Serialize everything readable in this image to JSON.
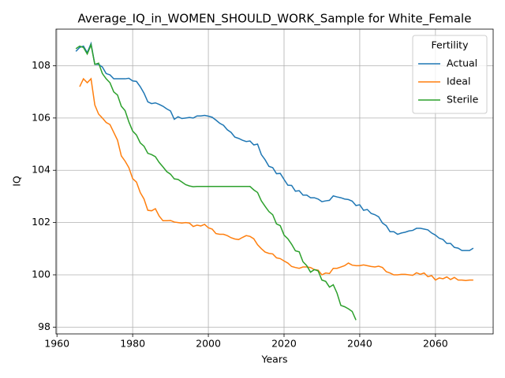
{
  "chart_data": {
    "type": "line",
    "title": "Average_IQ_in_WOMEN_SHOULD_WORK_Sample for White_Female",
    "xlabel": "Years",
    "ylabel": "IQ",
    "legend_title": "Fertility",
    "legend_loc": "upper right",
    "grid": true,
    "xlim": [
      1959.75,
      2075.25
    ],
    "ylim": [
      97.74,
      109.4
    ],
    "xticks": [
      1960,
      1980,
      2000,
      2020,
      2040,
      2060
    ],
    "yticks": [
      98,
      100,
      102,
      104,
      106,
      108
    ],
    "x": [
      1965,
      1966,
      1967,
      1968,
      1969,
      1970,
      1971,
      1972,
      1973,
      1974,
      1975,
      1976,
      1977,
      1978,
      1979,
      1980,
      1981,
      1982,
      1983,
      1984,
      1985,
      1986,
      1987,
      1988,
      1989,
      1990,
      1991,
      1992,
      1993,
      1994,
      1995,
      1996,
      1997,
      1998,
      1999,
      2000,
      2001,
      2002,
      2003,
      2004,
      2005,
      2006,
      2007,
      2008,
      2009,
      2010,
      2011,
      2012,
      2013,
      2014,
      2015,
      2016,
      2017,
      2018,
      2019,
      2020,
      2021,
      2022,
      2023,
      2024,
      2025,
      2026,
      2027,
      2028,
      2029,
      2030,
      2031,
      2032,
      2033,
      2034,
      2035,
      2036,
      2037,
      2038,
      2039,
      2040,
      2041,
      2042,
      2043,
      2044,
      2045,
      2046,
      2047,
      2048,
      2049,
      2050,
      2051,
      2052,
      2053,
      2054,
      2055,
      2056,
      2057,
      2058,
      2059,
      2060,
      2061,
      2062,
      2063,
      2064,
      2065,
      2066,
      2067,
      2068,
      2069,
      2070
    ],
    "series": [
      {
        "name": "Actual",
        "color": "#1f77b4",
        "values": [
          108.55,
          108.7,
          108.75,
          108.5,
          108.85,
          108.05,
          108.05,
          107.95,
          107.7,
          107.65,
          107.5,
          107.5,
          107.5,
          107.5,
          107.52,
          107.42,
          107.4,
          107.2,
          106.95,
          106.62,
          106.55,
          106.58,
          106.52,
          106.45,
          106.35,
          106.27,
          105.95,
          106.05,
          105.98,
          106.0,
          106.02,
          106.0,
          106.08,
          106.08,
          106.1,
          106.07,
          106.03,
          105.92,
          105.8,
          105.72,
          105.55,
          105.45,
          105.27,
          105.22,
          105.15,
          105.1,
          105.12,
          104.97,
          105.0,
          104.6,
          104.4,
          104.15,
          104.1,
          103.87,
          103.88,
          103.65,
          103.43,
          103.42,
          103.2,
          103.22,
          103.05,
          103.05,
          102.95,
          102.95,
          102.9,
          102.8,
          102.83,
          102.85,
          103.02,
          102.98,
          102.95,
          102.9,
          102.88,
          102.82,
          102.65,
          102.68,
          102.47,
          102.5,
          102.35,
          102.3,
          102.22,
          101.98,
          101.88,
          101.65,
          101.65,
          101.55,
          101.6,
          101.63,
          101.68,
          101.7,
          101.78,
          101.78,
          101.75,
          101.72,
          101.6,
          101.52,
          101.4,
          101.35,
          101.2,
          101.2,
          101.05,
          101.02,
          100.93,
          100.93,
          100.93,
          101.02
        ]
      },
      {
        "name": "Ideal",
        "color": "#ff7f0e",
        "values": [
          null,
          107.2,
          107.5,
          107.35,
          107.5,
          106.5,
          106.15,
          106.0,
          105.83,
          105.75,
          105.45,
          105.15,
          104.55,
          104.35,
          104.1,
          103.68,
          103.55,
          103.15,
          102.9,
          102.47,
          102.45,
          102.53,
          102.25,
          102.07,
          102.07,
          102.08,
          102.02,
          102.0,
          101.98,
          102.0,
          101.98,
          101.85,
          101.9,
          101.87,
          101.93,
          101.8,
          101.75,
          101.58,
          101.55,
          101.55,
          101.5,
          101.42,
          101.37,
          101.35,
          101.43,
          101.5,
          101.47,
          101.38,
          101.15,
          101.0,
          100.87,
          100.82,
          100.8,
          100.65,
          100.62,
          100.53,
          100.45,
          100.32,
          100.28,
          100.25,
          100.3,
          100.3,
          100.28,
          100.2,
          100.18,
          100.0,
          100.07,
          100.05,
          100.25,
          100.25,
          100.3,
          100.35,
          100.45,
          100.37,
          100.35,
          100.35,
          100.38,
          100.35,
          100.32,
          100.3,
          100.33,
          100.28,
          100.12,
          100.07,
          100.0,
          100.0,
          100.02,
          100.02,
          100.0,
          99.98,
          100.08,
          100.02,
          100.07,
          99.93,
          99.97,
          99.8,
          99.88,
          99.85,
          99.92,
          99.82,
          99.9,
          99.8,
          99.8,
          99.78,
          99.8,
          99.8
        ]
      },
      {
        "name": "Sterile",
        "color": "#2ca02c",
        "values": [
          108.65,
          108.75,
          108.7,
          108.45,
          108.8,
          108.05,
          108.1,
          107.7,
          107.5,
          107.35,
          107.0,
          106.88,
          106.45,
          106.28,
          105.85,
          105.5,
          105.35,
          105.05,
          104.92,
          104.65,
          104.6,
          104.52,
          104.3,
          104.13,
          103.95,
          103.85,
          103.67,
          103.65,
          103.55,
          103.45,
          103.4,
          103.37,
          103.38,
          103.38,
          103.38,
          103.38,
          103.38,
          103.38,
          103.38,
          103.38,
          103.38,
          103.38,
          103.38,
          103.38,
          103.38,
          103.38,
          103.38,
          103.25,
          103.15,
          102.83,
          102.62,
          102.42,
          102.3,
          101.95,
          101.88,
          101.52,
          101.38,
          101.17,
          100.92,
          100.88,
          100.5,
          100.35,
          100.1,
          100.2,
          100.15,
          99.8,
          99.75,
          99.53,
          99.62,
          99.3,
          98.83,
          98.78,
          98.7,
          98.6,
          98.27,
          null,
          null,
          null,
          null,
          null,
          null,
          null,
          null,
          null,
          null,
          null,
          null,
          null,
          null,
          null,
          null,
          null,
          null,
          null,
          null,
          null,
          null,
          null,
          null,
          null,
          null,
          null,
          null,
          null,
          null,
          null
        ]
      }
    ]
  }
}
